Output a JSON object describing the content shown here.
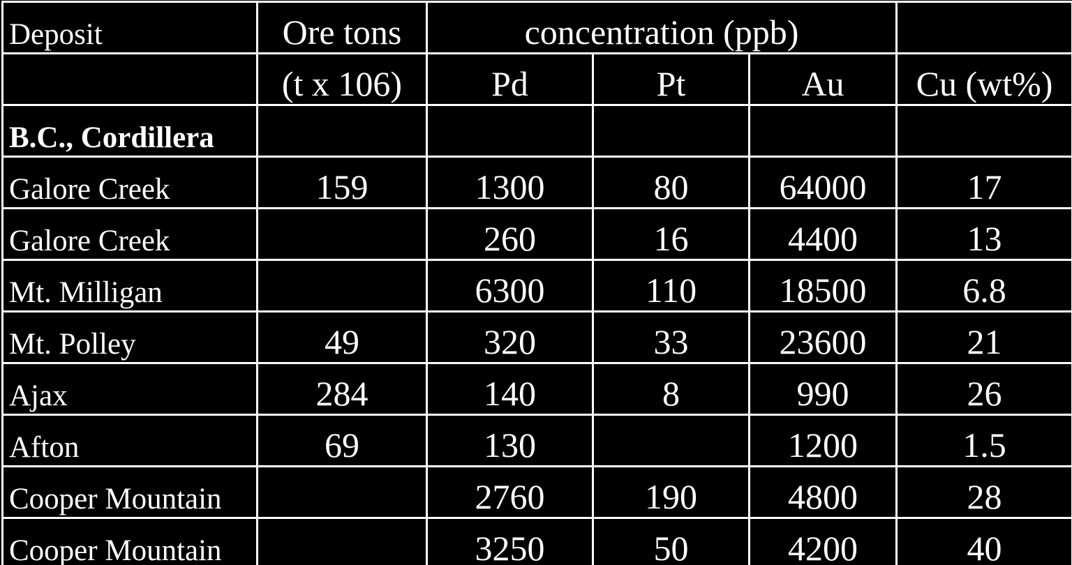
{
  "header": {
    "row1": [
      "Deposit",
      "Ore tons",
      "concentration (ppb)"
    ],
    "row2": [
      "(t x 106)",
      "Pd",
      "Pt",
      "Au",
      "Cu (wt%)"
    ]
  },
  "section": "B.C., Cordillera",
  "rows": [
    [
      "Galore Creek",
      159,
      1300,
      80,
      64000,
      17
    ],
    [
      "Galore Creek",
      null,
      260,
      16,
      4400,
      13
    ],
    [
      "Mt. Milligan",
      null,
      6300,
      110,
      18500,
      6.8
    ],
    [
      "Mt. Polley",
      49,
      320,
      33,
      23600,
      21
    ],
    [
      "Ajax",
      284,
      140,
      8,
      990,
      26
    ],
    [
      "Afton",
      69,
      130,
      null,
      1200,
      1.5
    ],
    [
      "Cooper Mountain",
      null,
      2760,
      190,
      4800,
      28
    ],
    [
      "Cooper Mountain",
      null,
      3250,
      50,
      4200,
      40
    ]
  ]
}
